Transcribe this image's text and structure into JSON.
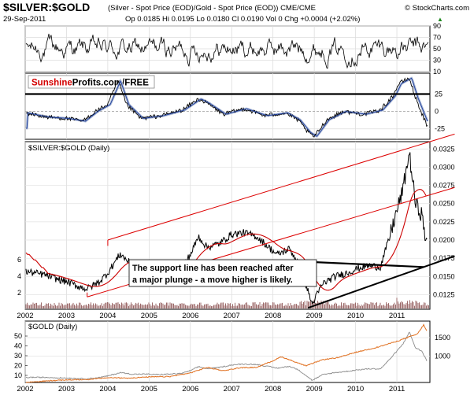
{
  "header": {
    "symbol": "$SILVER:$GOLD",
    "description": "(Silver - Spot Price (EOD)/Gold - Spot Price (EOD)) CME/CME",
    "watermark": "© StockCharts.com",
    "date": "29-Sep-2011",
    "quote": "Op 0.0185  Hi 0.0195  Lo 0.0180  Cl 0.0190  Vol 0  Chg +0.0004 (+2.02%)",
    "quote_arrow": "▲"
  },
  "logo": {
    "brand": "Sunshine",
    "rest": "Profits.com/FREE"
  },
  "colors": {
    "price_line": "#000000",
    "moving_average": "#cc0000",
    "resistance": "#dd0000",
    "support": "#000000",
    "gold_line": "#e07020",
    "ratio_overlay": "#8a8a8a",
    "macd_signal": "#1f3f9f",
    "macd_fill": "#aab8d4",
    "volume": "#9c6a6a",
    "logo_red": "#d40000"
  },
  "chart_data": [
    {
      "type": "line",
      "name": "rsi-panel",
      "y_ticks": [
        "90",
        "70",
        "50",
        "30",
        "10"
      ],
      "ylim": [
        10,
        90
      ]
    },
    {
      "type": "line",
      "name": "macd-panel",
      "y_ticks": [
        "25",
        "0",
        "-25"
      ],
      "reference_level": 25,
      "ylim": [
        -40,
        55
      ]
    },
    {
      "type": "line",
      "name": "silver-gold-ratio",
      "title": "$SILVER:$GOLD (Daily)",
      "x_ticks": [
        "2002",
        "2003",
        "2004",
        "2005",
        "2006",
        "2007",
        "2008",
        "2009",
        "2010",
        "2011"
      ],
      "y_ticks_right": [
        "0.0325",
        "0.0300",
        "0.0275",
        "0.0250",
        "0.0225",
        "0.0200",
        "0.0175",
        "0.0150",
        "0.0125"
      ],
      "y_ticks_left": [
        "6",
        "4",
        "2"
      ],
      "ylim": [
        0.0105,
        0.0335
      ],
      "x": [
        2002.0,
        2002.2,
        2002.5,
        2002.8,
        2003.0,
        2003.3,
        2003.5,
        2003.8,
        2004.0,
        2004.3,
        2004.6,
        2004.9,
        2005.2,
        2005.5,
        2005.8,
        2006.0,
        2006.2,
        2006.4,
        2006.7,
        2007.0,
        2007.3,
        2007.6,
        2007.9,
        2008.1,
        2008.4,
        2008.6,
        2008.8,
        2008.95,
        2009.2,
        2009.5,
        2009.8,
        2010.0,
        2010.3,
        2010.6,
        2010.8,
        2011.0,
        2011.15,
        2011.3,
        2011.45,
        2011.6,
        2011.75
      ],
      "values": [
        0.0157,
        0.0155,
        0.0152,
        0.0146,
        0.0143,
        0.0136,
        0.0133,
        0.0143,
        0.0155,
        0.0181,
        0.0165,
        0.0164,
        0.0158,
        0.016,
        0.0163,
        0.018,
        0.0205,
        0.019,
        0.0195,
        0.0208,
        0.021,
        0.0205,
        0.019,
        0.018,
        0.0188,
        0.017,
        0.0138,
        0.0112,
        0.014,
        0.015,
        0.0155,
        0.016,
        0.0165,
        0.0163,
        0.02,
        0.024,
        0.027,
        0.032,
        0.025,
        0.0235,
        0.0185
      ],
      "annotation": "The support line has been reached after a major plunge - a move higher is likely."
    },
    {
      "type": "line",
      "name": "gold-panel",
      "title": "$GOLD (Daily)",
      "x_ticks": [
        "2002",
        "2003",
        "2004",
        "2005",
        "2006",
        "2007",
        "2008",
        "2009",
        "2010",
        "2011"
      ],
      "y_ticks_right": [
        "1500",
        "1000"
      ],
      "y_ticks_left": [
        "50",
        "40",
        "30",
        "20",
        "10"
      ],
      "ylim": [
        280,
        1950
      ],
      "x": [
        2002.0,
        2002.5,
        2003.0,
        2003.5,
        2004.0,
        2004.5,
        2005.0,
        2005.5,
        2006.0,
        2006.4,
        2006.8,
        2007.2,
        2007.6,
        2008.0,
        2008.2,
        2008.8,
        2009.2,
        2009.6,
        2010.0,
        2010.5,
        2011.0,
        2011.5,
        2011.65,
        2011.75
      ],
      "values": [
        280,
        320,
        350,
        360,
        410,
        400,
        430,
        440,
        540,
        690,
        600,
        680,
        690,
        870,
        980,
        730,
        900,
        960,
        1100,
        1230,
        1400,
        1600,
        1850,
        1620
      ]
    }
  ]
}
